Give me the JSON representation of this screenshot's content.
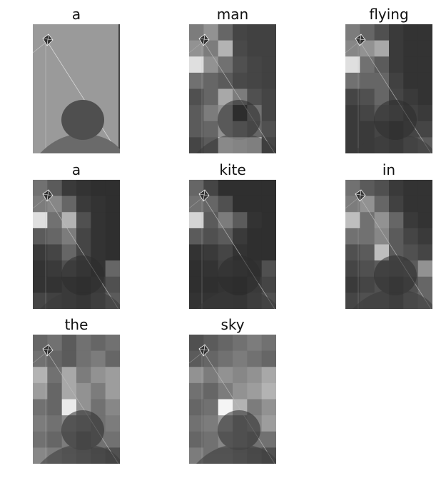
{
  "caption_words": [
    "a",
    "man",
    "flying",
    "a",
    "kite",
    "in",
    "the",
    "sky"
  ],
  "grid": {
    "columns": 3,
    "rows": 7,
    "cols_cells": 6
  },
  "panels": [
    {
      "word": "a",
      "type": "original"
    },
    {
      "word": "man",
      "type": "attention",
      "cells": [
        [
          0.45,
          0.55,
          0.35,
          0.2,
          0.18,
          0.18
        ],
        [
          0.55,
          0.45,
          0.7,
          0.22,
          0.18,
          0.18
        ],
        [
          0.9,
          0.55,
          0.4,
          0.25,
          0.2,
          0.18
        ],
        [
          0.4,
          0.35,
          0.3,
          0.22,
          0.2,
          0.18
        ],
        [
          0.25,
          0.35,
          0.65,
          0.45,
          0.25,
          0.2
        ],
        [
          0.3,
          0.45,
          0.55,
          0.1,
          0.4,
          0.2
        ],
        [
          0.3,
          0.35,
          0.55,
          0.45,
          0.35,
          0.25
        ],
        [
          0.2,
          0.3,
          0.95,
          0.9,
          0.85,
          0.2
        ]
      ]
    },
    {
      "word": "flying",
      "type": "attention",
      "cells": [
        [
          0.45,
          0.35,
          0.25,
          0.15,
          0.12,
          0.12
        ],
        [
          0.5,
          0.55,
          0.65,
          0.15,
          0.12,
          0.12
        ],
        [
          0.9,
          0.4,
          0.3,
          0.15,
          0.12,
          0.12
        ],
        [
          0.4,
          0.35,
          0.35,
          0.18,
          0.12,
          0.12
        ],
        [
          0.2,
          0.25,
          0.35,
          0.2,
          0.15,
          0.12
        ],
        [
          0.15,
          0.2,
          0.3,
          0.25,
          0.18,
          0.15
        ],
        [
          0.15,
          0.15,
          0.2,
          0.15,
          0.2,
          0.2
        ],
        [
          0.15,
          0.15,
          0.2,
          0.15,
          0.25,
          0.3
        ]
      ]
    },
    {
      "word": "a",
      "type": "attention",
      "cells": [
        [
          0.4,
          0.3,
          0.15,
          0.12,
          0.1,
          0.1
        ],
        [
          0.45,
          0.5,
          0.35,
          0.15,
          0.12,
          0.1
        ],
        [
          0.9,
          0.4,
          0.7,
          0.25,
          0.12,
          0.1
        ],
        [
          0.3,
          0.35,
          0.45,
          0.2,
          0.12,
          0.1
        ],
        [
          0.15,
          0.2,
          0.35,
          0.2,
          0.12,
          0.1
        ],
        [
          0.12,
          0.15,
          0.25,
          0.18,
          0.12,
          0.35
        ],
        [
          0.12,
          0.12,
          0.15,
          0.12,
          0.15,
          0.25
        ],
        [
          0.2,
          0.18,
          0.15,
          0.12,
          0.2,
          0.3
        ]
      ]
    },
    {
      "word": "kite",
      "type": "attention",
      "cells": [
        [
          0.35,
          0.2,
          0.1,
          0.1,
          0.1,
          0.1
        ],
        [
          0.4,
          0.35,
          0.25,
          0.1,
          0.1,
          0.1
        ],
        [
          0.85,
          0.3,
          0.45,
          0.3,
          0.12,
          0.1
        ],
        [
          0.3,
          0.25,
          0.3,
          0.15,
          0.1,
          0.1
        ],
        [
          0.12,
          0.15,
          0.2,
          0.12,
          0.1,
          0.1
        ],
        [
          0.1,
          0.12,
          0.18,
          0.15,
          0.12,
          0.25
        ],
        [
          0.1,
          0.1,
          0.12,
          0.1,
          0.15,
          0.2
        ],
        [
          0.12,
          0.12,
          0.12,
          0.1,
          0.18,
          0.25
        ]
      ]
    },
    {
      "word": "in",
      "type": "attention",
      "cells": [
        [
          0.4,
          0.3,
          0.25,
          0.15,
          0.12,
          0.12
        ],
        [
          0.45,
          0.55,
          0.35,
          0.18,
          0.12,
          0.12
        ],
        [
          0.75,
          0.4,
          0.55,
          0.35,
          0.15,
          0.12
        ],
        [
          0.4,
          0.4,
          0.5,
          0.3,
          0.2,
          0.15
        ],
        [
          0.25,
          0.3,
          0.75,
          0.3,
          0.25,
          0.2
        ],
        [
          0.2,
          0.25,
          0.3,
          0.28,
          0.3,
          0.55
        ],
        [
          0.15,
          0.2,
          0.25,
          0.2,
          0.25,
          0.35
        ],
        [
          0.2,
          0.25,
          0.25,
          0.2,
          0.3,
          0.35
        ]
      ]
    },
    {
      "word": "the",
      "type": "attention",
      "cells": [
        [
          0.35,
          0.4,
          0.3,
          0.4,
          0.35,
          0.4
        ],
        [
          0.4,
          0.35,
          0.3,
          0.4,
          0.45,
          0.35
        ],
        [
          0.7,
          0.4,
          0.65,
          0.45,
          0.55,
          0.6
        ],
        [
          0.6,
          0.35,
          0.65,
          0.55,
          0.45,
          0.6
        ],
        [
          0.4,
          0.35,
          0.95,
          0.55,
          0.4,
          0.5
        ],
        [
          0.45,
          0.4,
          0.5,
          0.45,
          0.4,
          0.45
        ],
        [
          0.4,
          0.35,
          0.45,
          0.35,
          0.4,
          0.4
        ],
        [
          0.5,
          0.45,
          0.4,
          0.35,
          0.3,
          0.25
        ]
      ]
    },
    {
      "word": "sky",
      "type": "attention",
      "cells": [
        [
          0.25,
          0.3,
          0.35,
          0.4,
          0.45,
          0.4
        ],
        [
          0.3,
          0.35,
          0.4,
          0.45,
          0.4,
          0.35
        ],
        [
          0.55,
          0.45,
          0.55,
          0.5,
          0.55,
          0.65
        ],
        [
          0.4,
          0.35,
          0.45,
          0.55,
          0.6,
          0.7
        ],
        [
          0.35,
          0.4,
          1.0,
          0.7,
          0.45,
          0.55
        ],
        [
          0.4,
          0.45,
          0.6,
          0.45,
          0.5,
          0.6
        ],
        [
          0.35,
          0.4,
          0.5,
          0.45,
          0.4,
          0.4
        ],
        [
          0.45,
          0.4,
          0.4,
          0.35,
          0.3,
          0.25
        ]
      ]
    }
  ]
}
